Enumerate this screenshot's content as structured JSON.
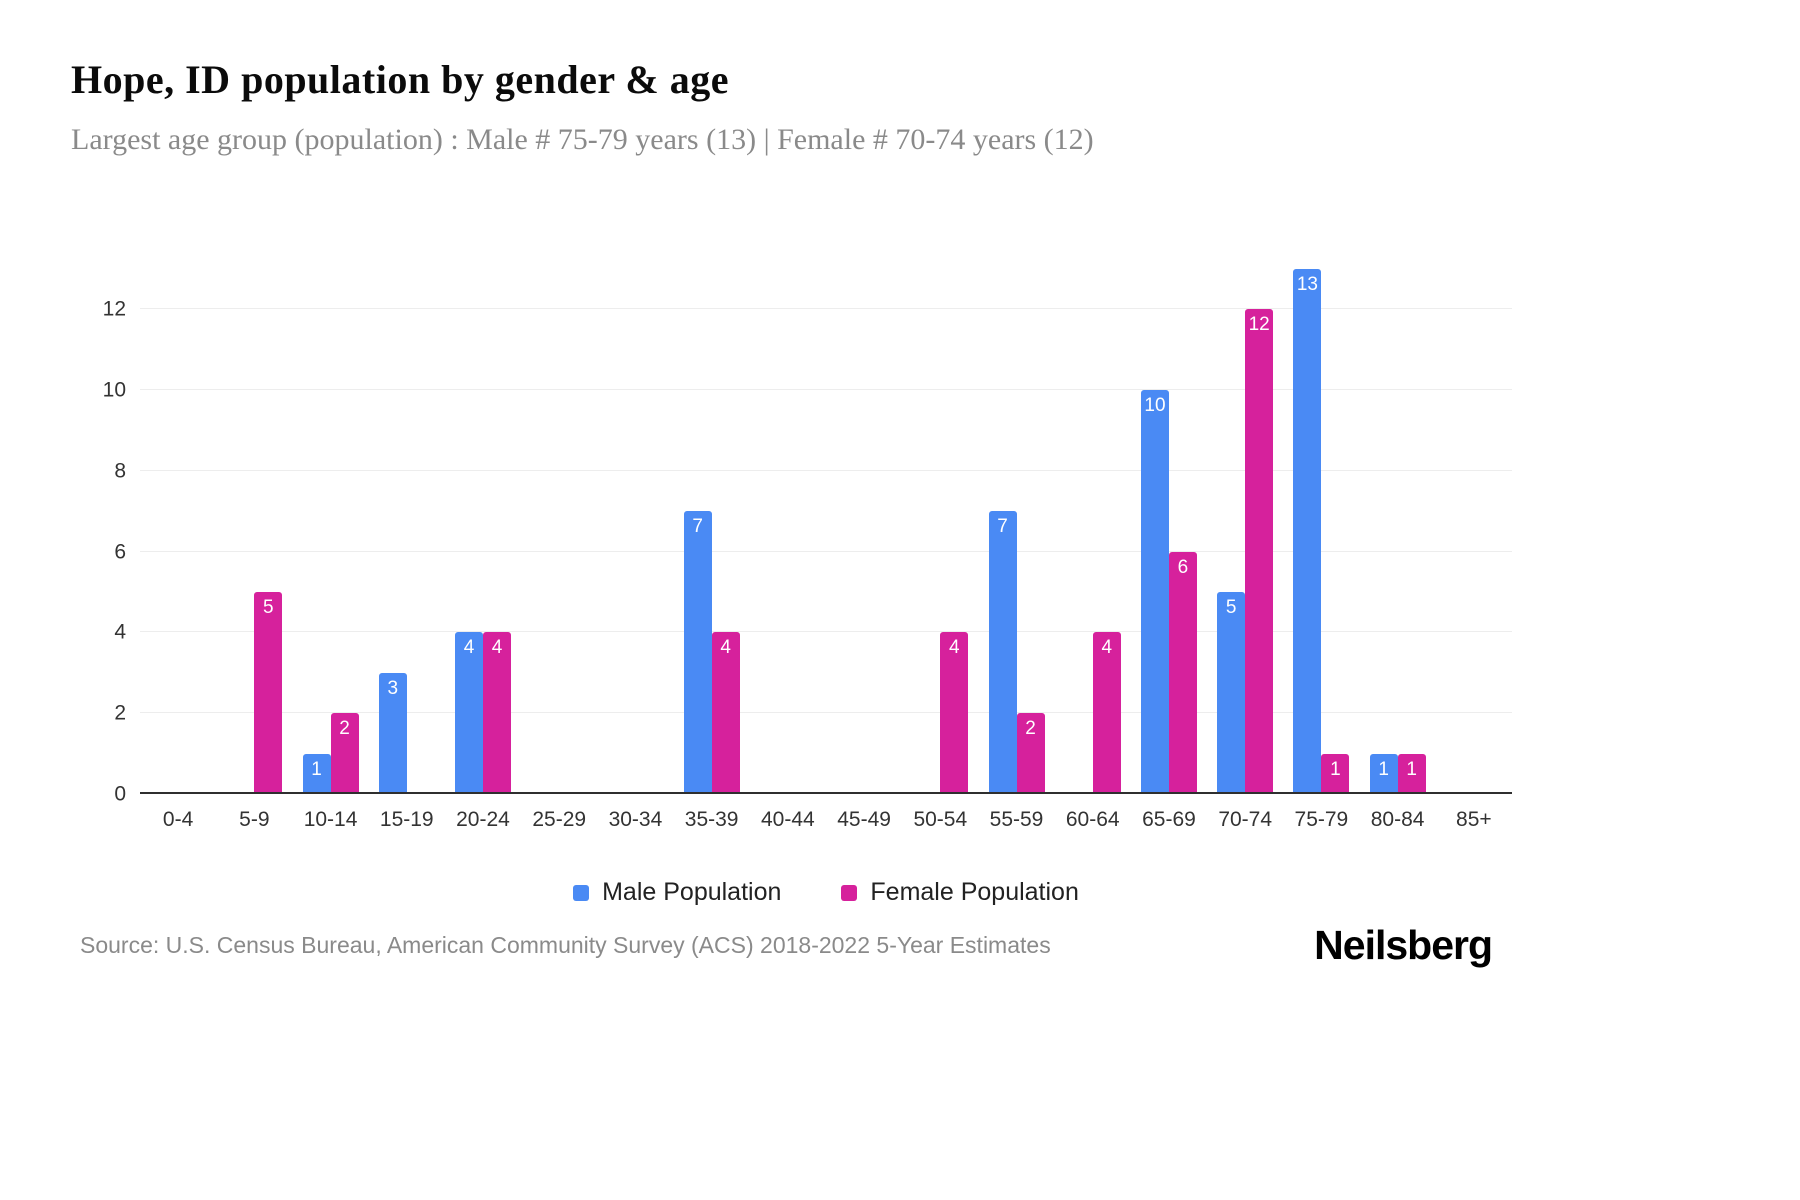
{
  "header": {
    "title": "Hope, ID population by gender & age",
    "subtitle": "Largest age group (population) : Male # 75-79 years (13) | Female # 70-74 years (12)"
  },
  "chart_data": {
    "type": "bar",
    "title": "Hope, ID population by gender & age",
    "categories": [
      "0-4",
      "5-9",
      "10-14",
      "15-19",
      "20-24",
      "25-29",
      "30-34",
      "35-39",
      "40-44",
      "45-49",
      "50-54",
      "55-59",
      "60-64",
      "65-69",
      "70-74",
      "75-79",
      "80-84",
      "85+"
    ],
    "series": [
      {
        "name": "Male Population",
        "color": "#4a8af4",
        "values": [
          0,
          0,
          1,
          3,
          4,
          0,
          0,
          7,
          0,
          0,
          0,
          7,
          0,
          10,
          5,
          13,
          1,
          0
        ]
      },
      {
        "name": "Female Population",
        "color": "#d6219c",
        "values": [
          0,
          5,
          2,
          0,
          4,
          0,
          0,
          4,
          0,
          0,
          4,
          2,
          4,
          6,
          12,
          1,
          1,
          0
        ]
      }
    ],
    "xlabel": "",
    "ylabel": "",
    "ylim": [
      0,
      13
    ],
    "yticks": [
      0,
      2,
      4,
      6,
      8,
      10,
      12
    ],
    "grid": true,
    "legend_position": "bottom",
    "bar_label_color": "#ffffff"
  },
  "legend": {
    "items": [
      {
        "label": "Male Population",
        "color": "#4a8af4"
      },
      {
        "label": "Female Population",
        "color": "#d6219c"
      }
    ]
  },
  "footer": {
    "source": "Source: U.S. Census Bureau, American Community Survey (ACS) 2018-2022 5-Year Estimates",
    "logo": "Neilsberg"
  }
}
